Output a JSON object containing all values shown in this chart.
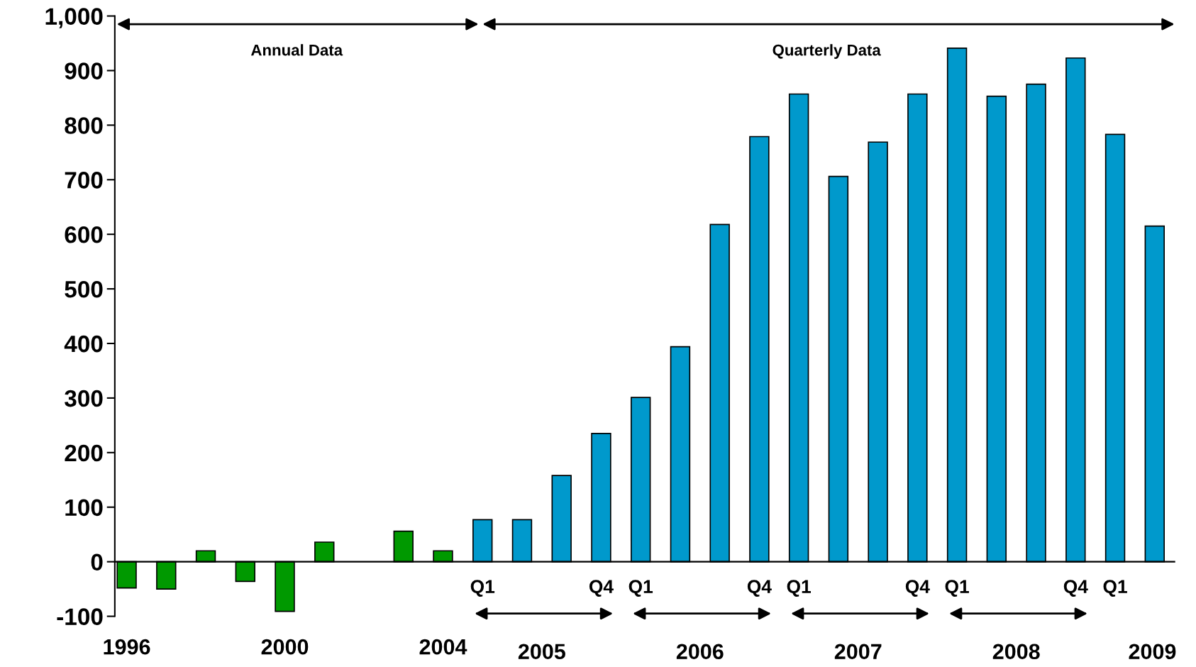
{
  "chart_data": {
    "type": "bar",
    "categories": [
      "1996",
      null,
      null,
      null,
      "2000",
      null,
      null,
      null,
      "2004",
      "Q1",
      null,
      null,
      "Q4",
      "Q1",
      null,
      null,
      "Q4",
      "Q1",
      null,
      null,
      "Q4",
      "Q1",
      null,
      null,
      "Q4",
      "Q1",
      null
    ],
    "values": [
      -48,
      -50,
      20,
      -36,
      -91,
      36,
      null,
      56,
      20,
      77,
      77,
      158,
      235,
      301,
      394,
      618,
      779,
      857,
      706,
      769,
      857,
      941,
      853,
      875,
      923,
      783,
      615
    ],
    "colors": [
      "#009900",
      "#009900",
      "#009900",
      "#009900",
      "#009900",
      "#009900",
      "#009900",
      "#009900",
      "#009900",
      "#0099cc",
      "#0099cc",
      "#0099cc",
      "#0099cc",
      "#0099cc",
      "#0099cc",
      "#0099cc",
      "#0099cc",
      "#0099cc",
      "#0099cc",
      "#0099cc",
      "#0099cc",
      "#0099cc",
      "#0099cc",
      "#0099cc",
      "#0099cc",
      "#0099cc",
      "#0099cc"
    ],
    "ylim": [
      -100,
      1000
    ],
    "yticks": [
      -100,
      0,
      100,
      200,
      300,
      400,
      500,
      600,
      700,
      800,
      900,
      {
        "value": 1000,
        "label": "1,000"
      }
    ],
    "grid": false,
    "legend": false,
    "annotations": [
      "Annual Data",
      "Quarterly Data",
      "2005",
      "2006",
      "2007",
      "2008",
      "2009"
    ]
  }
}
